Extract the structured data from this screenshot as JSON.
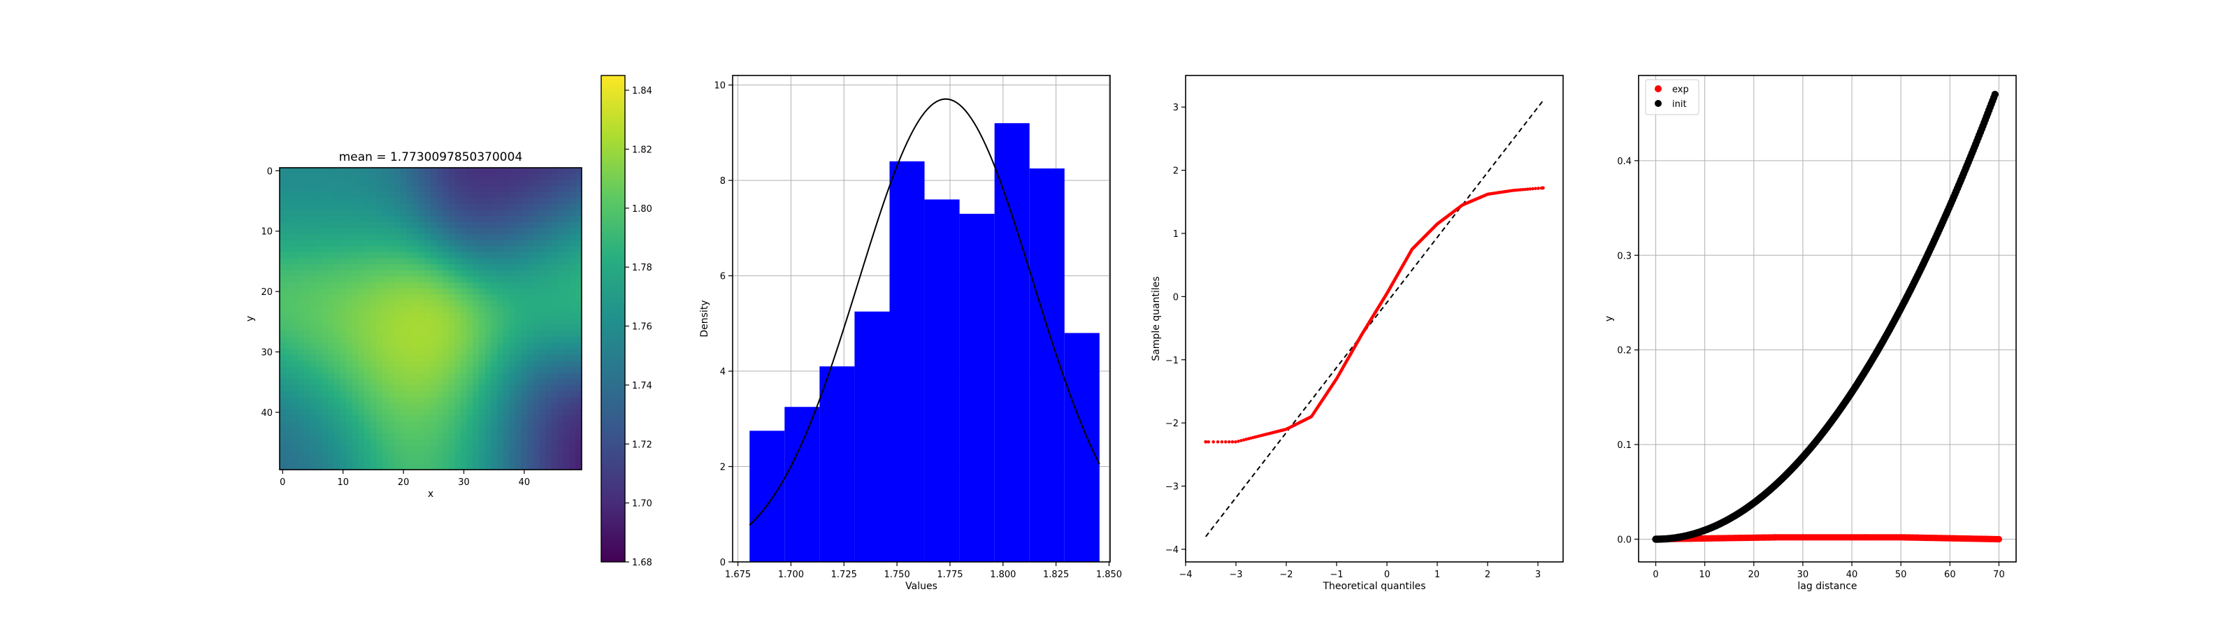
{
  "figure": {
    "background": "#ffffff"
  },
  "chart_data": [
    {
      "id": "heatmap",
      "type": "heatmap",
      "title": "mean = 1.7730097850370004",
      "xlabel": "x",
      "ylabel": "y",
      "xlim": [
        0,
        50
      ],
      "ylim": [
        50,
        0
      ],
      "xticks": [
        0,
        10,
        20,
        30,
        40
      ],
      "yticks": [
        0,
        10,
        20,
        30,
        40
      ],
      "grid_shape": [
        50,
        50
      ],
      "colormap": "viridis",
      "color_range": [
        1.68,
        1.845
      ],
      "colorbar_ticks": [
        "1.68",
        "1.70",
        "1.72",
        "1.74",
        "1.76",
        "1.78",
        "1.80",
        "1.82",
        "1.84"
      ],
      "field_centers": [
        {
          "x": 22,
          "y": 31,
          "value": 1.842
        },
        {
          "x": 8,
          "y": 24,
          "value": 1.815
        },
        {
          "x": 48,
          "y": 20,
          "value": 1.8
        },
        {
          "x": 28,
          "y": 45,
          "value": 1.8
        },
        {
          "x": 45,
          "y": 43,
          "value": 1.68
        },
        {
          "x": 38,
          "y": 2,
          "value": 1.695
        },
        {
          "x": 3,
          "y": 42,
          "value": 1.735
        },
        {
          "x": 8,
          "y": 4,
          "value": 1.755
        }
      ]
    },
    {
      "id": "histogram",
      "type": "bar",
      "xlabel": "Values",
      "ylabel": "Density",
      "grid": true,
      "bar_color": "#0000ff",
      "line_color": "#000000",
      "xlim": [
        1.6725,
        1.8505
      ],
      "ylim": [
        0,
        10.2
      ],
      "xticks": [
        "1.675",
        "1.700",
        "1.725",
        "1.750",
        "1.775",
        "1.800",
        "1.825",
        "1.850"
      ],
      "yticks": [
        "0",
        "2",
        "4",
        "6",
        "8",
        "10"
      ],
      "bin_edges": [
        1.6805,
        1.697,
        1.7135,
        1.73,
        1.7465,
        1.763,
        1.7795,
        1.796,
        1.8125,
        1.829,
        1.8455
      ],
      "values": [
        2.75,
        3.25,
        4.1,
        5.25,
        8.4,
        7.6,
        7.3,
        9.2,
        8.25,
        4.8
      ],
      "normal_fit": {
        "mean": 1.7730097850370004,
        "std": 0.0411,
        "x_range": [
          1.6805,
          1.8455
        ]
      }
    },
    {
      "id": "qqplot",
      "type": "scatter",
      "xlabel": "Theoretical quantiles",
      "ylabel": "Sample quantiles",
      "xlim": [
        -4,
        3.5
      ],
      "ylim": [
        -4.2,
        3.5
      ],
      "xticks": [
        -4,
        -3,
        -2,
        -1,
        0,
        1,
        2,
        3
      ],
      "yticks": [
        -4,
        -3,
        -2,
        -1,
        0,
        1,
        2,
        3
      ],
      "point_color": "#ff0000",
      "reference_line": {
        "x": [
          -3.6,
          3.1
        ],
        "y": [
          -3.8,
          3.1
        ],
        "color": "#000000",
        "style": "dashed"
      },
      "curve": {
        "x": [
          -3.6,
          -3.0,
          -2.5,
          -2.0,
          -1.5,
          -1.0,
          -0.5,
          0.0,
          0.5,
          1.0,
          1.5,
          2.0,
          2.5,
          3.1
        ],
        "y": [
          -2.3,
          -2.3,
          -2.2,
          -2.1,
          -1.9,
          -1.3,
          -0.6,
          0.05,
          0.75,
          1.15,
          1.45,
          1.62,
          1.68,
          1.72
        ]
      }
    },
    {
      "id": "variogram",
      "type": "scatter",
      "xlabel": "lag distance",
      "ylabel": "y",
      "grid": true,
      "xlim": [
        -3.5,
        73.5
      ],
      "ylim": [
        -0.024,
        0.49
      ],
      "xticks": [
        0,
        10,
        20,
        30,
        40,
        50,
        60,
        70
      ],
      "yticks": [
        "0.0",
        "0.1",
        "0.2",
        "0.3",
        "0.4"
      ],
      "legend": {
        "placement": "top-left",
        "entries": [
          "exp",
          "init"
        ]
      },
      "series": [
        {
          "name": "exp",
          "color": "#ff0000",
          "x_range": [
            0,
            70
          ],
          "values_approx": [
            {
              "x": 0,
              "y": 0.0
            },
            {
              "x": 25,
              "y": 0.002
            },
            {
              "x": 50,
              "y": 0.002
            },
            {
              "x": 70,
              "y": 0.0
            }
          ]
        },
        {
          "name": "init",
          "color": "#000000",
          "x_range": [
            0,
            69.2
          ],
          "model": "quadratic",
          "values_approx": [
            {
              "x": 0,
              "y": 0.0
            },
            {
              "x": 20,
              "y": 0.045
            },
            {
              "x": 40,
              "y": 0.18
            },
            {
              "x": 60,
              "y": 0.37
            },
            {
              "x": 69.2,
              "y": 0.47
            }
          ]
        }
      ]
    }
  ]
}
